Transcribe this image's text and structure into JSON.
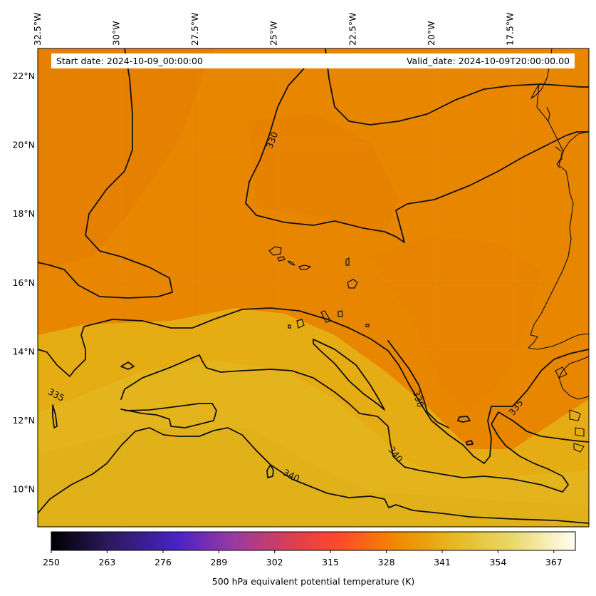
{
  "map": {
    "lon_labels": [
      {
        "lon": -32.5,
        "text": "32.5°W"
      },
      {
        "lon": -30.0,
        "text": "30°W"
      },
      {
        "lon": -27.5,
        "text": "27.5°W"
      },
      {
        "lon": -25.0,
        "text": "25°W"
      },
      {
        "lon": -22.5,
        "text": "22.5°W"
      },
      {
        "lon": -20.0,
        "text": "20°W"
      },
      {
        "lon": -17.5,
        "text": "17.5°W"
      }
    ],
    "lat_labels": [
      {
        "lat": 22,
        "text": "22°N"
      },
      {
        "lat": 20,
        "text": "20°N"
      },
      {
        "lat": 18,
        "text": "18°N"
      },
      {
        "lat": 16,
        "text": "16°N"
      },
      {
        "lat": 14,
        "text": "14°N"
      },
      {
        "lat": 12,
        "text": "12°N"
      },
      {
        "lat": 10,
        "text": "10°N"
      }
    ],
    "extent": {
      "lon_min": -32.5,
      "lon_max": -15.0,
      "lat_min": 8.9,
      "lat_max": 22.8
    },
    "contour_labels": {
      "c330": "330",
      "c335": "335",
      "c340": "340"
    }
  },
  "info": {
    "start_date": "Start date: 2024-10-09_00:00:00",
    "valid_date": "Valid_date: 2024-10-09T20:00:00.00"
  },
  "colorbar": {
    "ticks": [
      "250",
      "263",
      "276",
      "289",
      "302",
      "315",
      "328",
      "341",
      "354",
      "367"
    ],
    "range": [
      250,
      372
    ],
    "label": "500 hPa equivalent potential temperature (K)",
    "colors": [
      "#000000",
      "#2b1a5e",
      "#4a22c4",
      "#9b3aa0",
      "#e0404a",
      "#ff4a2a",
      "#f08a00",
      "#e6b520",
      "#ead86a",
      "#fffff5"
    ]
  },
  "colors": {
    "field_low": "#e88200",
    "field_mid": "#eb9a0a",
    "field_high": "#e4b51c"
  }
}
